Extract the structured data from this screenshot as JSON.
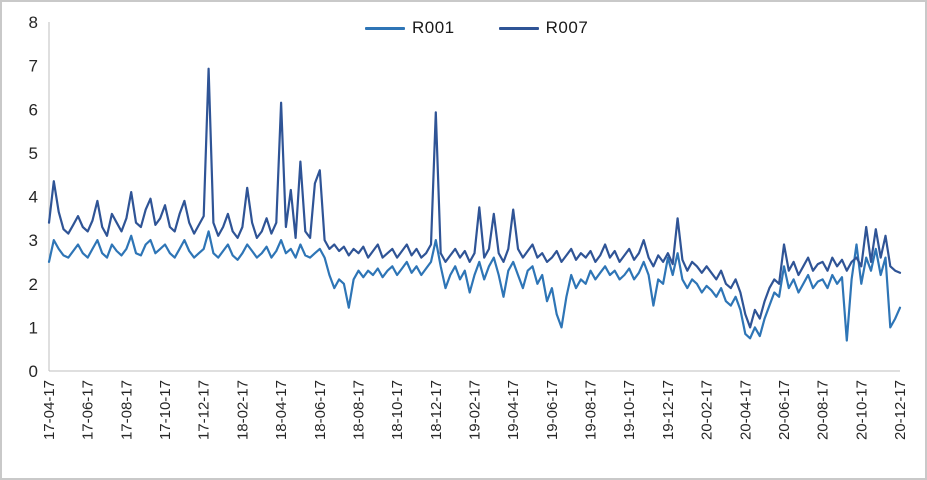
{
  "chart": {
    "legend_items": [
      {
        "label": "R001",
        "color": "#2E75B6"
      },
      {
        "label": "R007",
        "color": "#2F5496"
      }
    ],
    "axis_color": "#BFBFBF",
    "label_color": "#262626",
    "frame_border_color": "#C9C9C9"
  },
  "chart_data": {
    "type": "line",
    "title": "",
    "xlabel": "",
    "ylabel": "",
    "ylim": [
      0,
      8
    ],
    "y_ticks": [
      0,
      1,
      2,
      3,
      4,
      5,
      6,
      7,
      8
    ],
    "grid": false,
    "legend_position": "top-center",
    "x_tick_labels": [
      "17-04-17",
      "17-06-17",
      "17-08-17",
      "17-10-17",
      "17-12-17",
      "18-02-17",
      "18-04-17",
      "18-06-17",
      "18-08-17",
      "18-10-17",
      "18-12-17",
      "19-02-17",
      "19-04-17",
      "19-06-17",
      "19-08-17",
      "19-10-17",
      "19-12-17",
      "20-02-17",
      "20-04-17",
      "20-06-17",
      "20-08-17",
      "20-10-17",
      "20-12-17"
    ],
    "points_per_tick_interval": 8,
    "series": [
      {
        "name": "R001",
        "color": "#2E75B6",
        "values": [
          2.5,
          3.0,
          2.8,
          2.65,
          2.6,
          2.75,
          2.9,
          2.7,
          2.6,
          2.8,
          3.0,
          2.7,
          2.6,
          2.9,
          2.75,
          2.65,
          2.8,
          3.1,
          2.7,
          2.65,
          2.9,
          3.0,
          2.7,
          2.8,
          2.9,
          2.7,
          2.6,
          2.8,
          3.0,
          2.75,
          2.6,
          2.7,
          2.8,
          3.2,
          2.7,
          2.6,
          2.75,
          2.9,
          2.65,
          2.55,
          2.7,
          2.9,
          2.75,
          2.6,
          2.7,
          2.85,
          2.6,
          2.75,
          3.0,
          2.7,
          2.8,
          2.6,
          2.9,
          2.65,
          2.6,
          2.7,
          2.8,
          2.6,
          2.2,
          1.9,
          2.1,
          2.0,
          1.45,
          2.1,
          2.3,
          2.15,
          2.3,
          2.2,
          2.35,
          2.15,
          2.3,
          2.4,
          2.2,
          2.35,
          2.5,
          2.25,
          2.4,
          2.2,
          2.35,
          2.5,
          3.0,
          2.4,
          1.9,
          2.2,
          2.4,
          2.1,
          2.3,
          1.8,
          2.2,
          2.5,
          2.1,
          2.4,
          2.6,
          2.2,
          1.7,
          2.3,
          2.5,
          2.2,
          1.9,
          2.3,
          2.4,
          2.0,
          2.2,
          1.6,
          1.9,
          1.3,
          1.0,
          1.7,
          2.2,
          1.9,
          2.1,
          2.0,
          2.3,
          2.1,
          2.25,
          2.4,
          2.2,
          2.3,
          2.1,
          2.2,
          2.35,
          2.1,
          2.25,
          2.5,
          2.2,
          1.5,
          2.1,
          2.0,
          2.6,
          2.2,
          2.7,
          2.1,
          1.9,
          2.1,
          2.0,
          1.8,
          1.95,
          1.85,
          1.7,
          1.9,
          1.6,
          1.5,
          1.7,
          1.4,
          0.85,
          0.75,
          1.0,
          0.8,
          1.2,
          1.5,
          1.8,
          1.7,
          2.4,
          1.9,
          2.1,
          1.8,
          2.0,
          2.2,
          1.9,
          2.05,
          2.1,
          1.9,
          2.2,
          2.0,
          2.15,
          0.7,
          2.1,
          2.9,
          2.0,
          2.6,
          2.3,
          2.8,
          2.2,
          2.6,
          1.0,
          1.2,
          1.45
        ]
      },
      {
        "name": "R007",
        "color": "#2F5496",
        "values": [
          3.4,
          4.35,
          3.65,
          3.25,
          3.15,
          3.35,
          3.55,
          3.3,
          3.2,
          3.45,
          3.9,
          3.3,
          3.1,
          3.6,
          3.4,
          3.2,
          3.5,
          4.1,
          3.4,
          3.3,
          3.7,
          3.95,
          3.35,
          3.5,
          3.8,
          3.3,
          3.2,
          3.6,
          3.9,
          3.4,
          3.15,
          3.35,
          3.55,
          6.93,
          3.4,
          3.1,
          3.3,
          3.6,
          3.2,
          3.05,
          3.3,
          4.2,
          3.4,
          3.05,
          3.2,
          3.5,
          3.15,
          3.4,
          6.15,
          3.3,
          4.15,
          3.05,
          4.8,
          3.2,
          3.05,
          4.3,
          4.6,
          3.0,
          2.8,
          2.9,
          2.75,
          2.85,
          2.65,
          2.8,
          2.7,
          2.85,
          2.6,
          2.75,
          2.9,
          2.6,
          2.7,
          2.8,
          2.6,
          2.75,
          2.9,
          2.65,
          2.8,
          2.6,
          2.7,
          2.9,
          5.93,
          2.7,
          2.5,
          2.65,
          2.8,
          2.6,
          2.75,
          2.5,
          2.7,
          3.75,
          2.6,
          2.8,
          3.6,
          2.7,
          2.5,
          2.8,
          3.7,
          2.8,
          2.6,
          2.75,
          2.9,
          2.6,
          2.7,
          2.5,
          2.6,
          2.75,
          2.5,
          2.65,
          2.8,
          2.55,
          2.7,
          2.6,
          2.75,
          2.5,
          2.65,
          2.9,
          2.6,
          2.75,
          2.5,
          2.65,
          2.8,
          2.55,
          2.7,
          3.0,
          2.6,
          2.4,
          2.65,
          2.5,
          2.7,
          2.45,
          3.5,
          2.55,
          2.3,
          2.5,
          2.4,
          2.25,
          2.4,
          2.25,
          2.1,
          2.3,
          2.0,
          1.9,
          2.1,
          1.8,
          1.3,
          1.0,
          1.4,
          1.2,
          1.6,
          1.9,
          2.1,
          2.0,
          2.9,
          2.3,
          2.5,
          2.2,
          2.4,
          2.6,
          2.3,
          2.45,
          2.5,
          2.3,
          2.6,
          2.4,
          2.55,
          2.3,
          2.5,
          2.6,
          2.4,
          3.3,
          2.5,
          3.25,
          2.6,
          3.1,
          2.4,
          2.3,
          2.25
        ]
      }
    ]
  }
}
